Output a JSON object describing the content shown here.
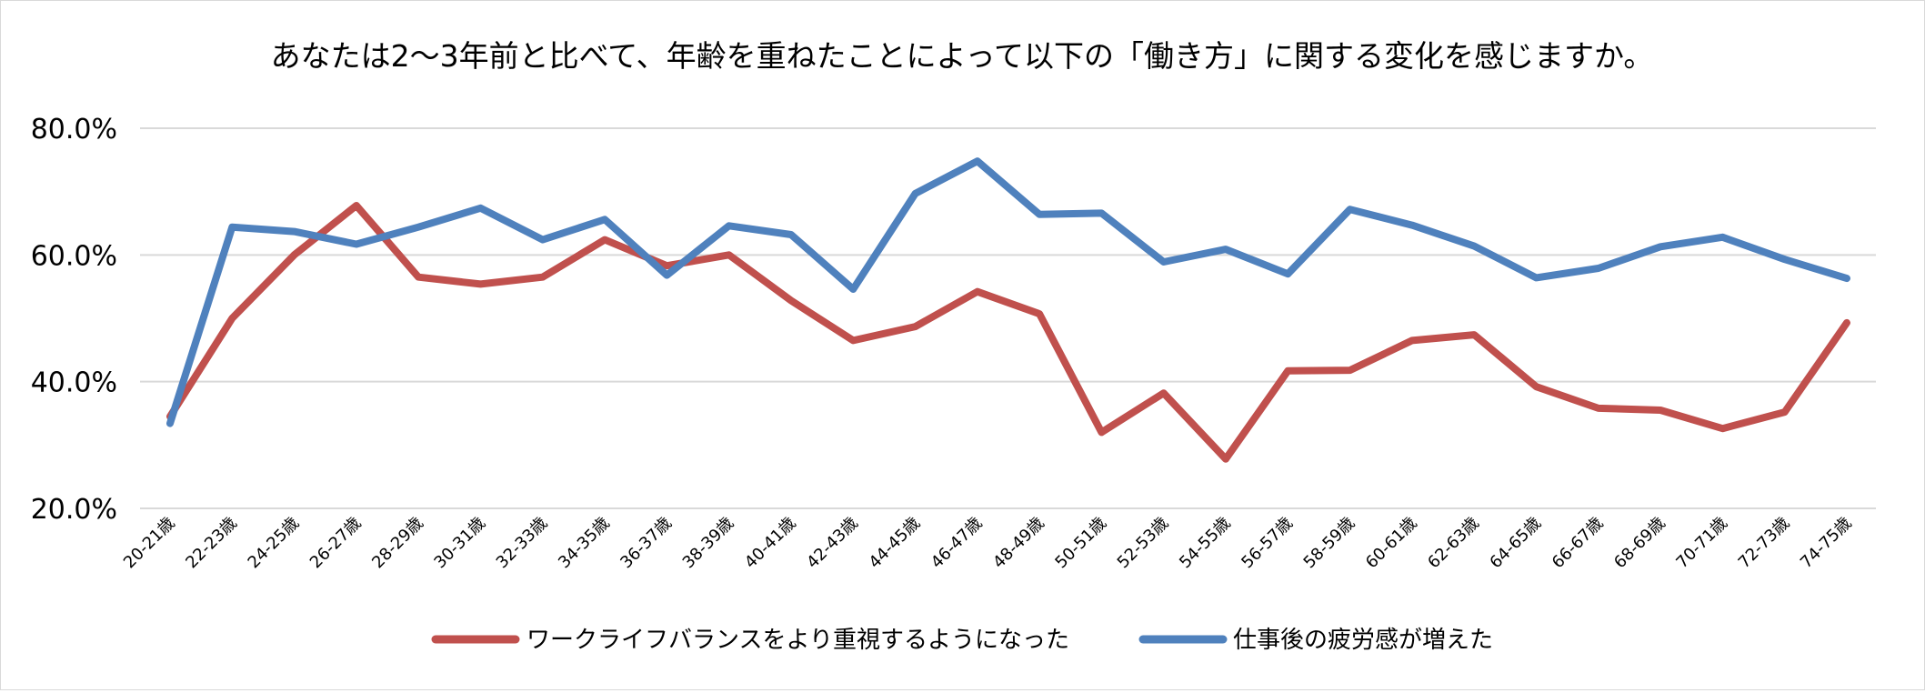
{
  "chart_data": {
    "type": "line",
    "title": "あなたは2～3年前と比べて、年齢を重ねたことによって以下の「働き方」に関する変化を感じますか。",
    "xlabel": "",
    "ylabel": "",
    "categories": [
      "20-21歳",
      "22-23歳",
      "24-25歳",
      "26-27歳",
      "28-29歳",
      "30-31歳",
      "32-33歳",
      "34-35歳",
      "36-37歳",
      "38-39歳",
      "40-41歳",
      "42-43歳",
      "44-45歳",
      "46-47歳",
      "48-49歳",
      "50-51歳",
      "52-53歳",
      "54-55歳",
      "56-57歳",
      "58-59歳",
      "60-61歳",
      "62-63歳",
      "64-65歳",
      "66-67歳",
      "68-69歳",
      "70-71歳",
      "72-73歳",
      "74-75歳"
    ],
    "ylim": [
      20,
      80
    ],
    "yticks": [
      20,
      40,
      60,
      80
    ],
    "ytick_labels": [
      "20.0%",
      "40.0%",
      "60.0%",
      "80.0%"
    ],
    "grid": true,
    "legend_position": "bottom",
    "series": [
      {
        "name": "ワークライフバランスをより重視するようになった",
        "color": "#c0504d",
        "values": [
          34.5,
          50.0,
          60.0,
          67.8,
          56.5,
          55.4,
          56.5,
          62.4,
          58.3,
          60.0,
          52.8,
          46.5,
          48.7,
          54.2,
          50.7,
          32.0,
          38.2,
          27.8,
          41.7,
          41.8,
          46.5,
          47.4,
          39.2,
          35.8,
          35.5,
          32.6,
          35.2,
          49.3
        ]
      },
      {
        "name": "仕事後の疲労感が増えた",
        "color": "#4f81bd",
        "values": [
          33.4,
          64.4,
          63.7,
          61.7,
          64.4,
          67.4,
          62.4,
          65.6,
          56.8,
          64.6,
          63.2,
          54.6,
          69.7,
          74.8,
          66.4,
          66.6,
          58.9,
          60.9,
          57.0,
          67.2,
          64.7,
          61.4,
          56.4,
          57.9,
          61.3,
          62.8,
          59.3,
          56.3
        ]
      }
    ]
  }
}
